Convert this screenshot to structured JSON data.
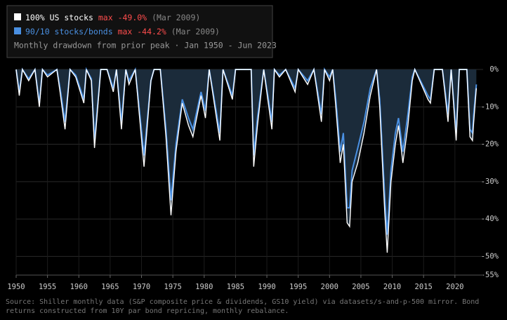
{
  "chart_data": {
    "type": "drawdown",
    "legend_items": [
      {
        "name": "100% US stocks",
        "max_label": "max -49.0%",
        "max_date": "(Mar 2009)"
      },
      {
        "name": "90/10 stocks/bonds",
        "max_label": "max -44.2%",
        "max_date": "(Mar 2009)"
      }
    ],
    "subtitle": "Monthly drawdown from prior peak · Jan 1950 - Jun 2023",
    "source": "Source: Shiller monthly data (S&P composite price & dividends, GS10 yield) via datasets/s-and-p-500 mirror. Bond returns constructed from 10Y par bond repricing, monthly rebalance.",
    "x": [
      1950.0,
      1950.5,
      1951,
      1952,
      1953.0,
      1953.7,
      1954.2,
      1955,
      1956.5,
      1957.0,
      1957.8,
      1958.6,
      1959.5,
      1960.8,
      1961.2,
      1962.0,
      1962.5,
      1963.5,
      1964.5,
      1965.5,
      1966.0,
      1966.8,
      1967.5,
      1968,
      1969.0,
      1970.4,
      1971.5,
      1972,
      1973.0,
      1973.9,
      1974.7,
      1975.5,
      1976.5,
      1977.5,
      1978.2,
      1979.5,
      1980.2,
      1980.8,
      1982.5,
      1983.0,
      1984.5,
      1985,
      1986,
      1987.5,
      1987.9,
      1988.5,
      1989.5,
      1990.8,
      1991.2,
      1992,
      1993,
      1994.5,
      1995,
      1996.5,
      1997.5,
      1998.7,
      1999.2,
      2000.0,
      2000.5,
      2001.0,
      2001.7,
      2002.2,
      2002.8,
      2003.2,
      2003.6,
      2004.5,
      2005.5,
      2006.5,
      2007.5,
      2008.0,
      2008.8,
      2009.2,
      2009.8,
      2010.5,
      2011.0,
      2011.7,
      2012.5,
      2013.2,
      2013.6,
      2015.7,
      2016.1,
      2016.7,
      2018.0,
      2018.9,
      2019.4,
      2020.2,
      2020.7,
      2021.9,
      2022.4,
      2022.8,
      2023.0,
      2023.42
    ],
    "series": [
      {
        "name": "100% US stocks",
        "color": "#ffffff",
        "values": [
          0,
          -7,
          0,
          -3,
          0,
          -10,
          0,
          -2,
          0,
          -6,
          -16,
          0,
          -2,
          -9,
          0,
          -3,
          -21,
          0,
          0,
          -6,
          0,
          -16,
          0,
          -4,
          0,
          -26,
          -3,
          0,
          0,
          -18,
          -39,
          -22,
          -9,
          -15,
          -18,
          -7,
          -13,
          0,
          -19,
          0,
          -8,
          0,
          0,
          0,
          -26,
          -15,
          0,
          -16,
          0,
          -2,
          0,
          -6,
          0,
          -4,
          0,
          -14,
          0,
          -3,
          0,
          -10,
          -25,
          -20,
          -41,
          -42,
          -30,
          -25,
          -17,
          -7,
          0,
          -10,
          -38,
          -49,
          -30,
          -20,
          -15,
          -25,
          -15,
          -3,
          0,
          -8,
          -9,
          0,
          0,
          -14,
          0,
          -19,
          0,
          0,
          -18,
          -19,
          -14,
          -5
        ]
      },
      {
        "name": "90/10 stocks/bonds",
        "color": "#4a90e2",
        "values": [
          0,
          -6,
          0,
          -2.5,
          0,
          -9,
          0,
          -1.5,
          0,
          -5,
          -14,
          0,
          -1.5,
          -8,
          0,
          -2.5,
          -19,
          0,
          0,
          -5,
          0,
          -14,
          0,
          -3,
          0,
          -23,
          -3,
          0,
          0,
          -16,
          -35,
          -20,
          -8,
          -13,
          -16,
          -6,
          -11,
          0,
          -17,
          0,
          -7,
          0,
          0,
          0,
          -23,
          -13,
          0,
          -14,
          0,
          -1.5,
          0,
          -5,
          0,
          -3,
          0,
          -12,
          0,
          -2,
          0,
          -8,
          -22,
          -17,
          -37,
          -37,
          -27,
          -21,
          -14,
          -5,
          0,
          -8,
          -34,
          -44.2,
          -27,
          -17,
          -13,
          -22,
          -12,
          -2,
          0,
          -7,
          -8,
          0,
          0,
          -12,
          0,
          -17,
          0,
          0,
          -16,
          -17,
          -12,
          -4
        ]
      }
    ],
    "area_color": "#1b2b3a",
    "xlim": [
      1950,
      2024.5
    ],
    "xticks": [
      1950,
      1955,
      1960,
      1965,
      1970,
      1975,
      1980,
      1985,
      1990,
      1995,
      2000,
      2005,
      2010,
      2015,
      2020
    ],
    "ylim": [
      -55,
      0
    ],
    "yticks": [
      {
        "value": 0,
        "label": "0%"
      },
      {
        "value": -10,
        "label": "-10%"
      },
      {
        "value": -20,
        "label": "-20%"
      },
      {
        "value": -30,
        "label": "-30%"
      },
      {
        "value": -40,
        "label": "-40%"
      },
      {
        "value": -50,
        "label": "-50%"
      },
      {
        "value": -55,
        "label": "-55%"
      }
    ],
    "grid": true
  }
}
